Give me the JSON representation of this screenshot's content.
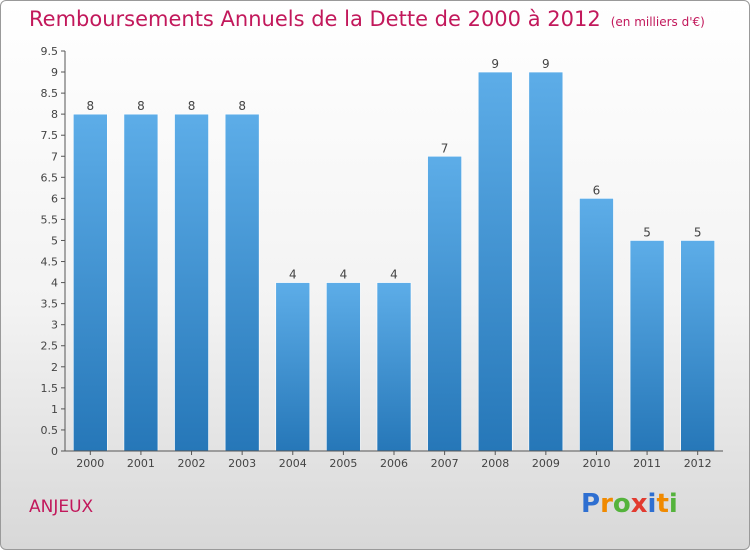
{
  "title": "Remboursements Annuels de la Dette de 2000 à 2012",
  "unit_note": "(en milliers d'€)",
  "commune": "ANJEUX",
  "brand": "Proxiti",
  "colors": {
    "title": "#c2185b",
    "bar_light": "#5dade8",
    "bar_dark": "#2677b8"
  },
  "chart_data": {
    "type": "bar",
    "title": "Remboursements Annuels de la Dette de 2000 à 2012",
    "xlabel": "",
    "ylabel": "",
    "categories": [
      "2000",
      "2001",
      "2002",
      "2003",
      "2004",
      "2005",
      "2006",
      "2007",
      "2008",
      "2009",
      "2010",
      "2011",
      "2012"
    ],
    "values": [
      8,
      8,
      8,
      8,
      4,
      4,
      4,
      7,
      9,
      9,
      6,
      5,
      5
    ],
    "value_labels": [
      "8",
      "8",
      "8",
      "8",
      "4",
      "4",
      "4",
      "7",
      "9",
      "9",
      "6",
      "5",
      "5"
    ],
    "ylim": [
      0,
      9.5
    ],
    "yticks": [
      "0",
      "0.5",
      "1",
      "1.5",
      "2",
      "2.5",
      "3",
      "3.5",
      "4",
      "4.5",
      "5",
      "5.5",
      "6",
      "6.5",
      "7",
      "7.5",
      "8",
      "8.5",
      "9",
      "9.5"
    ],
    "grid": false,
    "legend": "none"
  }
}
